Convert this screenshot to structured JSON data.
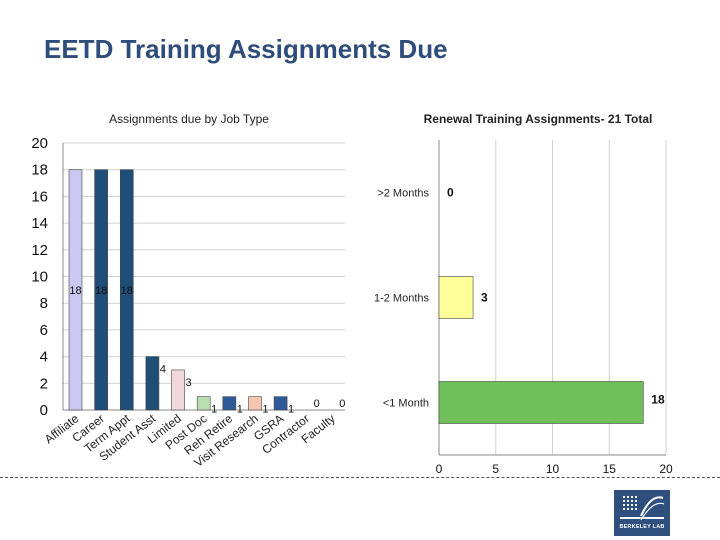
{
  "page": {
    "title": "EETD Training Assignments Due",
    "logo_text": "BERKELEY LAB",
    "colors": {
      "title": "#2e4d7b",
      "logo_bg": "#2f4f7f"
    }
  },
  "chart_data": [
    {
      "type": "bar",
      "title": "Assignments due by Job Type",
      "categories": [
        "Affiliate",
        "Career",
        "Term Appt",
        "Student Asst",
        "Limited",
        "Post Doc",
        "Reh Retire",
        "Visit Research",
        "GSRA",
        "Contractor",
        "Faculty"
      ],
      "values": [
        18,
        18,
        18,
        4,
        3,
        1,
        1,
        1,
        1,
        0,
        0
      ],
      "data_labels": [
        "18",
        "18",
        "18",
        "4",
        "3",
        "1",
        "1",
        "1",
        "1",
        "0",
        "0"
      ],
      "colors": [
        "#c8c8f0",
        "#1f4e79",
        "#1f4e79",
        "#1f4e79",
        "#f2d9d9",
        "#b8ddb0",
        "#2f5a9a",
        "#f7c6b0",
        "#2f5a9a",
        "#1f4e79",
        "#1f4e79"
      ],
      "yticks": [
        0,
        2,
        4,
        6,
        8,
        10,
        12,
        14,
        16,
        18,
        20
      ],
      "ylim": [
        0,
        20
      ],
      "grid": true,
      "xlabel": "",
      "ylabel": ""
    },
    {
      "type": "bar",
      "orientation": "horizontal",
      "title": "Renewal Training Assignments- 21 Total",
      "categories": [
        ">2 Months",
        "1-2 Months",
        "<1 Month"
      ],
      "values": [
        0,
        3,
        18
      ],
      "data_labels": [
        "0",
        "3",
        "18"
      ],
      "colors": [
        "#ffff99",
        "#ffff99",
        "#6fbf5a"
      ],
      "xticks": [
        0,
        5,
        10,
        15,
        20
      ],
      "xlim": [
        0,
        20
      ],
      "grid": true,
      "xlabel": "",
      "ylabel": ""
    }
  ]
}
